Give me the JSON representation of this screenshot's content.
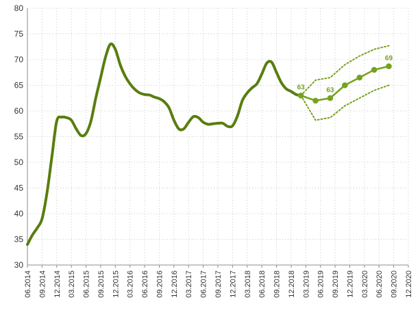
{
  "chart_data": {
    "type": "line",
    "title": "",
    "xlabel": "",
    "ylabel": "",
    "ylim": [
      30,
      80
    ],
    "y_ticks": [
      30,
      35,
      40,
      45,
      50,
      55,
      60,
      65,
      70,
      75,
      80
    ],
    "grid": "dotted, both axes",
    "x_tick_labels": [
      "06.2014",
      "09.2014",
      "12.2014",
      "03.2015",
      "06.2015",
      "09.2015",
      "12.2015",
      "03.2016",
      "06.2016",
      "09.2016",
      "12.2016",
      "03.2017",
      "06.2017",
      "09.2017",
      "12.2017",
      "03.2018",
      "06.2018",
      "09.2018",
      "12.2018",
      "03.2019",
      "06.2019",
      "09.2019",
      "12.2019",
      "03.2020",
      "06.2020",
      "09.2020",
      "12.2020"
    ],
    "colors": {
      "actual": "#5a7d0f",
      "forecast": "#76a21e",
      "band": "#76a21e",
      "label": "#76a21e"
    },
    "series": [
      {
        "style": "solid-thick",
        "points": [
          [
            "06.2014",
            34
          ],
          [
            "07.2014",
            35.8
          ],
          [
            "08.2014",
            37.2
          ],
          [
            "09.2014",
            39
          ],
          [
            "10.2014",
            44
          ],
          [
            "11.2014",
            51
          ],
          [
            "12.2014",
            58
          ],
          [
            "01.2015",
            58.8
          ],
          [
            "02.2015",
            58.7
          ],
          [
            "03.2015",
            58.2
          ],
          [
            "04.2015",
            56.5
          ],
          [
            "05.2015",
            55.2
          ],
          [
            "06.2015",
            55.6
          ],
          [
            "07.2015",
            58
          ],
          [
            "08.2015",
            62.5
          ],
          [
            "09.2015",
            66.5
          ],
          [
            "10.2015",
            70.5
          ],
          [
            "11.2015",
            73
          ],
          [
            "12.2015",
            72
          ],
          [
            "01.2016",
            69
          ],
          [
            "02.2016",
            66.8
          ],
          [
            "03.2016",
            65.3
          ],
          [
            "04.2016",
            64.2
          ],
          [
            "05.2016",
            63.5
          ],
          [
            "06.2016",
            63.2
          ],
          [
            "07.2016",
            63.1
          ],
          [
            "08.2016",
            62.7
          ],
          [
            "09.2016",
            62.4
          ],
          [
            "10.2016",
            61.8
          ],
          [
            "11.2016",
            60.6
          ],
          [
            "12.2016",
            58.2
          ],
          [
            "01.2017",
            56.5
          ],
          [
            "02.2017",
            56.5
          ],
          [
            "03.2017",
            57.8
          ],
          [
            "04.2017",
            58.9
          ],
          [
            "05.2017",
            58.7
          ],
          [
            "06.2017",
            57.8
          ],
          [
            "07.2017",
            57.4
          ],
          [
            "08.2017",
            57.5
          ],
          [
            "09.2017",
            57.6
          ],
          [
            "10.2017",
            57.6
          ],
          [
            "11.2017",
            57
          ],
          [
            "12.2017",
            57.1
          ],
          [
            "01.2018",
            59
          ],
          [
            "02.2018",
            62
          ],
          [
            "03.2018",
            63.5
          ],
          [
            "04.2018",
            64.5
          ],
          [
            "05.2018",
            65.3
          ],
          [
            "06.2018",
            67.2
          ],
          [
            "07.2018",
            69.3
          ],
          [
            "08.2018",
            69.5
          ],
          [
            "09.2018",
            67.5
          ],
          [
            "10.2018",
            65.5
          ],
          [
            "11.2018",
            64.3
          ],
          [
            "12.2018",
            63.8
          ],
          [
            "01.2019",
            63.2
          ],
          [
            "02.2019",
            63
          ]
        ]
      },
      {
        "style": "forecast",
        "markers": true,
        "points": [
          [
            "02.2019",
            63
          ],
          [
            "05.2019",
            62
          ],
          [
            "08.2019",
            62.5
          ],
          [
            "11.2019",
            65
          ],
          [
            "02.2020",
            66.5
          ],
          [
            "05.2020",
            68
          ],
          [
            "08.2020",
            68.7
          ]
        ]
      },
      {
        "style": "dotted-upper",
        "points": [
          [
            "02.2019",
            63
          ],
          [
            "05.2019",
            66
          ],
          [
            "08.2019",
            66.5
          ],
          [
            "11.2019",
            69
          ],
          [
            "02.2020",
            70.7
          ],
          [
            "05.2020",
            72
          ],
          [
            "08.2020",
            72.7
          ]
        ]
      },
      {
        "style": "dotted-lower",
        "points": [
          [
            "02.2019",
            63
          ],
          [
            "05.2019",
            58.2
          ],
          [
            "08.2019",
            58.7
          ],
          [
            "11.2019",
            61
          ],
          [
            "02.2020",
            62.5
          ],
          [
            "05.2020",
            64
          ],
          [
            "08.2020",
            65
          ]
        ]
      }
    ],
    "data_labels": [
      {
        "x": "02.2019",
        "y": 63,
        "text": "63"
      },
      {
        "x": "08.2019",
        "y": 62.5,
        "text": "63"
      },
      {
        "x": "08.2020",
        "y": 68.7,
        "text": "69"
      }
    ]
  }
}
